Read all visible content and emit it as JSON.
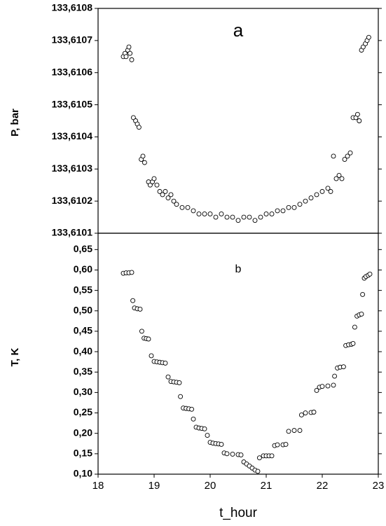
{
  "chart_data": [
    {
      "type": "scatter",
      "annotation": "a",
      "ylabel": "P, bar",
      "xlim": [
        18,
        23
      ],
      "ylim": [
        133.6101,
        133.6108
      ],
      "yticks": [
        {
          "value": 133.6101,
          "label": "133,6101"
        },
        {
          "value": 133.6102,
          "label": "133,6102"
        },
        {
          "value": 133.6103,
          "label": "133,6103"
        },
        {
          "value": 133.6104,
          "label": "133,6104"
        },
        {
          "value": 133.6105,
          "label": "133,6105"
        },
        {
          "value": 133.6106,
          "label": "133,6106"
        },
        {
          "value": 133.6107,
          "label": "133,6107"
        },
        {
          "value": 133.6108,
          "label": "133,6108"
        }
      ],
      "x": [
        18.45,
        18.48,
        18.5,
        18.53,
        18.55,
        18.57,
        18.6,
        18.63,
        18.67,
        18.7,
        18.73,
        18.77,
        18.8,
        18.83,
        18.9,
        18.93,
        18.97,
        19.0,
        19.05,
        19.1,
        19.15,
        19.2,
        19.25,
        19.3,
        19.35,
        19.4,
        19.5,
        19.6,
        19.7,
        19.8,
        19.9,
        20.0,
        20.1,
        20.2,
        20.3,
        20.4,
        20.5,
        20.6,
        20.7,
        20.8,
        20.9,
        21.0,
        21.1,
        21.2,
        21.3,
        21.4,
        21.5,
        21.6,
        21.7,
        21.8,
        21.9,
        22.0,
        22.1,
        22.15,
        22.2,
        22.25,
        22.3,
        22.35,
        22.4,
        22.45,
        22.5,
        22.55,
        22.6,
        22.63,
        22.66,
        22.7,
        22.73,
        22.77,
        22.8,
        22.83
      ],
      "values": [
        133.61065,
        133.61066,
        133.61065,
        133.61067,
        133.61068,
        133.61066,
        133.61064,
        133.61046,
        133.61045,
        133.61044,
        133.61043,
        133.61033,
        133.61034,
        133.61032,
        133.61026,
        133.61025,
        133.61026,
        133.61027,
        133.61025,
        133.61023,
        133.61022,
        133.61023,
        133.61021,
        133.61022,
        133.6102,
        133.61019,
        133.61018,
        133.61018,
        133.61017,
        133.61016,
        133.61016,
        133.61016,
        133.61015,
        133.61016,
        133.61015,
        133.61015,
        133.61014,
        133.61015,
        133.61015,
        133.61014,
        133.61015,
        133.61016,
        133.61016,
        133.61017,
        133.61017,
        133.61018,
        133.61018,
        133.61019,
        133.6102,
        133.61021,
        133.61022,
        133.61023,
        133.61024,
        133.61023,
        133.61034,
        133.61027,
        133.61028,
        133.61027,
        133.61033,
        133.61034,
        133.61035,
        133.61046,
        133.61046,
        133.61047,
        133.61045,
        133.61067,
        133.61068,
        133.61069,
        133.6107,
        133.61071
      ]
    },
    {
      "type": "scatter",
      "annotation": "b",
      "ylabel": "T, K",
      "xlabel": "t_hour",
      "xlim": [
        18,
        23
      ],
      "xticks": [
        18,
        19,
        20,
        21,
        22,
        23
      ],
      "ylim": [
        0.1,
        0.69
      ],
      "yticks": [
        {
          "value": 0.1,
          "label": "0,10"
        },
        {
          "value": 0.15,
          "label": "0,15"
        },
        {
          "value": 0.2,
          "label": "0,20"
        },
        {
          "value": 0.25,
          "label": "0,25"
        },
        {
          "value": 0.3,
          "label": "0,30"
        },
        {
          "value": 0.35,
          "label": "0,35"
        },
        {
          "value": 0.4,
          "label": "0,40"
        },
        {
          "value": 0.45,
          "label": "0,45"
        },
        {
          "value": 0.5,
          "label": "0,50"
        },
        {
          "value": 0.55,
          "label": "0,55"
        },
        {
          "value": 0.6,
          "label": "0,60"
        },
        {
          "value": 0.65,
          "label": "0,65"
        }
      ],
      "x": [
        18.45,
        18.5,
        18.55,
        18.6,
        18.62,
        18.65,
        18.7,
        18.75,
        18.78,
        18.82,
        18.86,
        18.9,
        18.95,
        19.0,
        19.05,
        19.1,
        19.15,
        19.2,
        19.25,
        19.3,
        19.35,
        19.4,
        19.45,
        19.47,
        19.52,
        19.57,
        19.62,
        19.67,
        19.7,
        19.75,
        19.8,
        19.85,
        19.9,
        19.95,
        20.0,
        20.05,
        20.1,
        20.15,
        20.2,
        20.25,
        20.3,
        20.4,
        20.5,
        20.55,
        20.6,
        20.65,
        20.7,
        20.75,
        20.8,
        20.85,
        20.88,
        20.95,
        21.0,
        21.05,
        21.1,
        21.15,
        21.2,
        21.3,
        21.35,
        21.4,
        21.5,
        21.6,
        21.63,
        21.7,
        21.8,
        21.85,
        21.9,
        21.95,
        22.0,
        22.1,
        22.2,
        22.22,
        22.27,
        22.32,
        22.38,
        22.42,
        22.47,
        22.52,
        22.55,
        22.58,
        22.62,
        22.66,
        22.7,
        22.72,
        22.75,
        22.78,
        22.82,
        22.85
      ],
      "values": [
        0.592,
        0.593,
        0.593,
        0.594,
        0.525,
        0.507,
        0.505,
        0.504,
        0.45,
        0.433,
        0.432,
        0.431,
        0.39,
        0.376,
        0.375,
        0.374,
        0.373,
        0.372,
        0.338,
        0.327,
        0.326,
        0.325,
        0.324,
        0.29,
        0.262,
        0.261,
        0.26,
        0.259,
        0.235,
        0.215,
        0.213,
        0.212,
        0.211,
        0.195,
        0.178,
        0.176,
        0.175,
        0.174,
        0.173,
        0.152,
        0.15,
        0.149,
        0.148,
        0.147,
        0.13,
        0.125,
        0.12,
        0.115,
        0.11,
        0.107,
        0.14,
        0.145,
        0.145,
        0.145,
        0.145,
        0.17,
        0.172,
        0.172,
        0.173,
        0.205,
        0.207,
        0.207,
        0.245,
        0.25,
        0.251,
        0.252,
        0.305,
        0.313,
        0.315,
        0.316,
        0.318,
        0.34,
        0.36,
        0.362,
        0.363,
        0.415,
        0.417,
        0.418,
        0.42,
        0.46,
        0.487,
        0.49,
        0.492,
        0.54,
        0.58,
        0.584,
        0.587,
        0.59
      ]
    }
  ]
}
